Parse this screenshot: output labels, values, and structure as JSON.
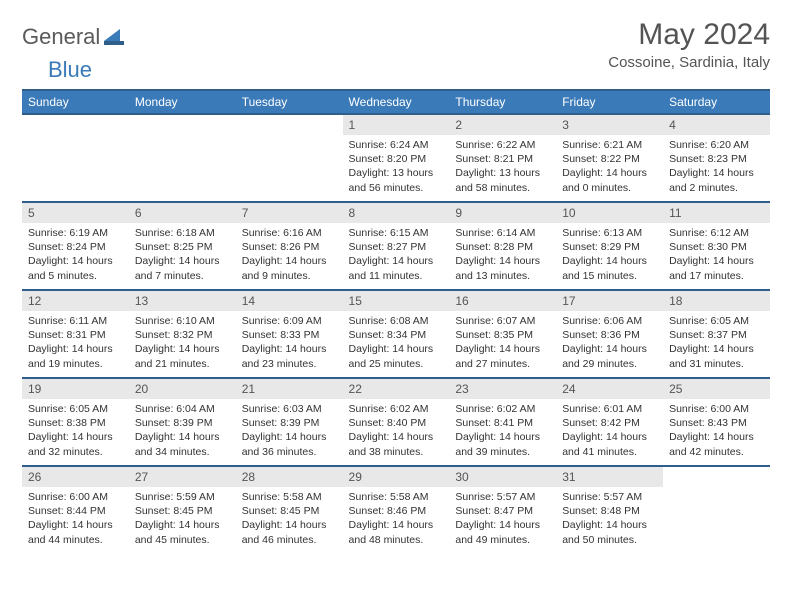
{
  "logo": {
    "word1": "General",
    "word2": "Blue"
  },
  "title": "May 2024",
  "location": "Cossoine, Sardinia, Italy",
  "colors": {
    "header_bg": "#3a7ab8",
    "header_border": "#2f5e8a",
    "daynum_bg": "#e8e8e8",
    "text": "#333333",
    "title_text": "#545454"
  },
  "typography": {
    "title_fontsize": 30,
    "location_fontsize": 15,
    "header_fontsize": 12,
    "body_fontsize": 10.5
  },
  "day_headers": [
    "Sunday",
    "Monday",
    "Tuesday",
    "Wednesday",
    "Thursday",
    "Friday",
    "Saturday"
  ],
  "weeks": [
    [
      {
        "empty": true
      },
      {
        "empty": true
      },
      {
        "empty": true
      },
      {
        "n": "1",
        "sunrise": "6:24 AM",
        "sunset": "8:20 PM",
        "daylight": "13 hours and 56 minutes."
      },
      {
        "n": "2",
        "sunrise": "6:22 AM",
        "sunset": "8:21 PM",
        "daylight": "13 hours and 58 minutes."
      },
      {
        "n": "3",
        "sunrise": "6:21 AM",
        "sunset": "8:22 PM",
        "daylight": "14 hours and 0 minutes."
      },
      {
        "n": "4",
        "sunrise": "6:20 AM",
        "sunset": "8:23 PM",
        "daylight": "14 hours and 2 minutes."
      }
    ],
    [
      {
        "n": "5",
        "sunrise": "6:19 AM",
        "sunset": "8:24 PM",
        "daylight": "14 hours and 5 minutes."
      },
      {
        "n": "6",
        "sunrise": "6:18 AM",
        "sunset": "8:25 PM",
        "daylight": "14 hours and 7 minutes."
      },
      {
        "n": "7",
        "sunrise": "6:16 AM",
        "sunset": "8:26 PM",
        "daylight": "14 hours and 9 minutes."
      },
      {
        "n": "8",
        "sunrise": "6:15 AM",
        "sunset": "8:27 PM",
        "daylight": "14 hours and 11 minutes."
      },
      {
        "n": "9",
        "sunrise": "6:14 AM",
        "sunset": "8:28 PM",
        "daylight": "14 hours and 13 minutes."
      },
      {
        "n": "10",
        "sunrise": "6:13 AM",
        "sunset": "8:29 PM",
        "daylight": "14 hours and 15 minutes."
      },
      {
        "n": "11",
        "sunrise": "6:12 AM",
        "sunset": "8:30 PM",
        "daylight": "14 hours and 17 minutes."
      }
    ],
    [
      {
        "n": "12",
        "sunrise": "6:11 AM",
        "sunset": "8:31 PM",
        "daylight": "14 hours and 19 minutes."
      },
      {
        "n": "13",
        "sunrise": "6:10 AM",
        "sunset": "8:32 PM",
        "daylight": "14 hours and 21 minutes."
      },
      {
        "n": "14",
        "sunrise": "6:09 AM",
        "sunset": "8:33 PM",
        "daylight": "14 hours and 23 minutes."
      },
      {
        "n": "15",
        "sunrise": "6:08 AM",
        "sunset": "8:34 PM",
        "daylight": "14 hours and 25 minutes."
      },
      {
        "n": "16",
        "sunrise": "6:07 AM",
        "sunset": "8:35 PM",
        "daylight": "14 hours and 27 minutes."
      },
      {
        "n": "17",
        "sunrise": "6:06 AM",
        "sunset": "8:36 PM",
        "daylight": "14 hours and 29 minutes."
      },
      {
        "n": "18",
        "sunrise": "6:05 AM",
        "sunset": "8:37 PM",
        "daylight": "14 hours and 31 minutes."
      }
    ],
    [
      {
        "n": "19",
        "sunrise": "6:05 AM",
        "sunset": "8:38 PM",
        "daylight": "14 hours and 32 minutes."
      },
      {
        "n": "20",
        "sunrise": "6:04 AM",
        "sunset": "8:39 PM",
        "daylight": "14 hours and 34 minutes."
      },
      {
        "n": "21",
        "sunrise": "6:03 AM",
        "sunset": "8:39 PM",
        "daylight": "14 hours and 36 minutes."
      },
      {
        "n": "22",
        "sunrise": "6:02 AM",
        "sunset": "8:40 PM",
        "daylight": "14 hours and 38 minutes."
      },
      {
        "n": "23",
        "sunrise": "6:02 AM",
        "sunset": "8:41 PM",
        "daylight": "14 hours and 39 minutes."
      },
      {
        "n": "24",
        "sunrise": "6:01 AM",
        "sunset": "8:42 PM",
        "daylight": "14 hours and 41 minutes."
      },
      {
        "n": "25",
        "sunrise": "6:00 AM",
        "sunset": "8:43 PM",
        "daylight": "14 hours and 42 minutes."
      }
    ],
    [
      {
        "n": "26",
        "sunrise": "6:00 AM",
        "sunset": "8:44 PM",
        "daylight": "14 hours and 44 minutes."
      },
      {
        "n": "27",
        "sunrise": "5:59 AM",
        "sunset": "8:45 PM",
        "daylight": "14 hours and 45 minutes."
      },
      {
        "n": "28",
        "sunrise": "5:58 AM",
        "sunset": "8:45 PM",
        "daylight": "14 hours and 46 minutes."
      },
      {
        "n": "29",
        "sunrise": "5:58 AM",
        "sunset": "8:46 PM",
        "daylight": "14 hours and 48 minutes."
      },
      {
        "n": "30",
        "sunrise": "5:57 AM",
        "sunset": "8:47 PM",
        "daylight": "14 hours and 49 minutes."
      },
      {
        "n": "31",
        "sunrise": "5:57 AM",
        "sunset": "8:48 PM",
        "daylight": "14 hours and 50 minutes."
      },
      {
        "empty": true
      }
    ]
  ],
  "labels": {
    "sunrise": "Sunrise:",
    "sunset": "Sunset:",
    "daylight": "Daylight:"
  }
}
